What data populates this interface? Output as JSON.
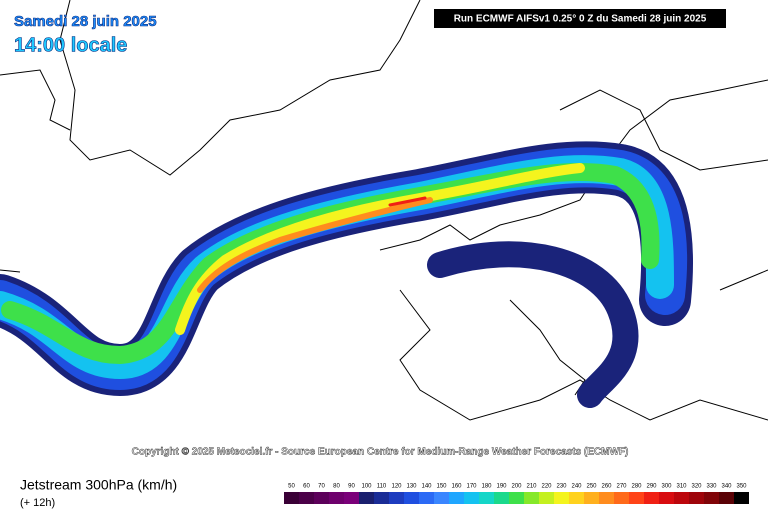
{
  "header": {
    "date": "Samedi 28 juin 2025",
    "time": "14:00 locale",
    "run": "Run ECMWF AIFSv1 0.25° 0 Z du Samedi 28 juin 2025"
  },
  "map": {
    "copyright": "Copyright © 2025 Meteociel.fr - Source European Centre for Medium-Range Weather Forecasts (ECMWF)"
  },
  "footer": {
    "title": "Jetstream 300hPa (km/h)",
    "lead": "(+ 12h)"
  },
  "legend": {
    "ticks": [
      50,
      60,
      70,
      80,
      90,
      100,
      110,
      120,
      130,
      140,
      150,
      160,
      170,
      180,
      190,
      200,
      210,
      220,
      230,
      240,
      250,
      260,
      270,
      280,
      290,
      300,
      310,
      320,
      330,
      340,
      350
    ],
    "colors": [
      "#3a0036",
      "#4b0048",
      "#5c005a",
      "#6e006c",
      "#7a0079",
      "#1a1f6e",
      "#1a2c96",
      "#1d3cbf",
      "#1f4fe0",
      "#2b6af5",
      "#3a86ff",
      "#1fa6ff",
      "#14c2f0",
      "#15d6c8",
      "#1bd98c",
      "#3ee04a",
      "#86e82a",
      "#c4f020",
      "#f4f41e",
      "#ffd21e",
      "#ffb01e",
      "#ff8c1e",
      "#ff6a1a",
      "#ff4418",
      "#f02014",
      "#d80c10",
      "#bc060c",
      "#9e040a",
      "#800408",
      "#5a0206",
      "#000000"
    ]
  }
}
